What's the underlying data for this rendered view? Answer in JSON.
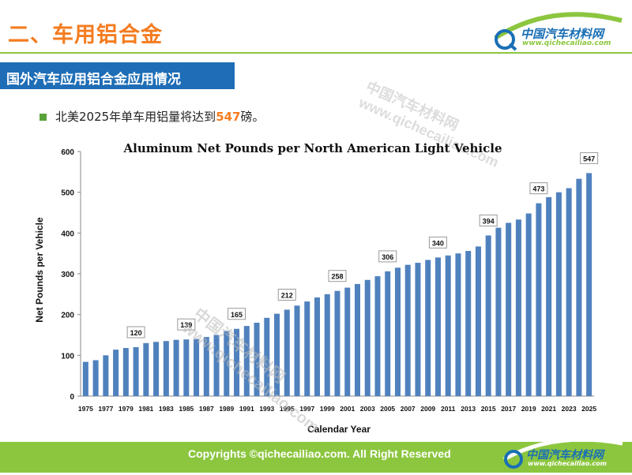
{
  "header": {
    "title": "二、车用铝合金"
  },
  "logo": {
    "name": "中国汽车材料网",
    "url": "www.qichecailiao.com"
  },
  "section": {
    "label": "国外汽车应用铝合金应用情况"
  },
  "bullet": {
    "prefix": "北美2025年单车用铝量将达到",
    "highlight": "547",
    "suffix": "磅。"
  },
  "watermark": {
    "name": "中国汽车材料网",
    "url": "www.qichecailiao.com"
  },
  "footer": {
    "copyright": "Copyrights ©qichecailiao.com. All Right Reserved"
  },
  "colors": {
    "accent": "#f47c20",
    "brand": "#1e6db6",
    "green": "#8cc63f",
    "bar": "#4f81bd"
  },
  "chart_data": {
    "type": "bar",
    "title": "Aluminum Net Pounds per North American Light Vehicle",
    "xlabel": "Calendar Year",
    "ylabel": "Net Pounds per Vehicle",
    "ylim": [
      0,
      600
    ],
    "yticks": [
      0,
      100,
      200,
      300,
      400,
      500,
      600
    ],
    "grid": false,
    "categories": [
      "1975",
      "1976",
      "1977",
      "1978",
      "1979",
      "1980",
      "1981",
      "1982",
      "1983",
      "1984",
      "1985",
      "1986",
      "1987",
      "1988",
      "1989",
      "1990",
      "1991",
      "1992",
      "1993",
      "1994",
      "1995",
      "1996",
      "1997",
      "1998",
      "1999",
      "2000",
      "2001",
      "2002",
      "2003",
      "2004",
      "2005",
      "2006",
      "2007",
      "2008",
      "2009",
      "2010",
      "2011",
      "2012",
      "2013",
      "2014",
      "2015",
      "2016",
      "2017",
      "2018",
      "2019",
      "2020",
      "2021",
      "2022",
      "2023",
      "2024",
      "2025"
    ],
    "xtick_labels": [
      "1975",
      "1977",
      "1979",
      "1981",
      "1983",
      "1985",
      "1987",
      "1989",
      "1991",
      "1993",
      "1995",
      "1997",
      "1999",
      "2001",
      "2003",
      "2005",
      "2007",
      "2009",
      "2011",
      "2013",
      "2015",
      "2017",
      "2019",
      "2021",
      "2023",
      "2025"
    ],
    "values": [
      84,
      88,
      100,
      114,
      118,
      120,
      130,
      133,
      135,
      138,
      139,
      140,
      145,
      150,
      160,
      165,
      172,
      180,
      192,
      202,
      212,
      222,
      232,
      242,
      250,
      258,
      266,
      275,
      285,
      294,
      306,
      315,
      322,
      327,
      334,
      340,
      345,
      350,
      356,
      367,
      394,
      413,
      425,
      433,
      448,
      473,
      488,
      500,
      510,
      533,
      547
    ],
    "data_labels": [
      {
        "year": "1980",
        "value": 120
      },
      {
        "year": "1985",
        "value": 139
      },
      {
        "year": "1990",
        "value": 165
      },
      {
        "year": "1995",
        "value": 212
      },
      {
        "year": "2000",
        "value": 258
      },
      {
        "year": "2005",
        "value": 306
      },
      {
        "year": "2010",
        "value": 340
      },
      {
        "year": "2015",
        "value": 394
      },
      {
        "year": "2020",
        "value": 473
      },
      {
        "year": "2025",
        "value": 547
      }
    ]
  }
}
